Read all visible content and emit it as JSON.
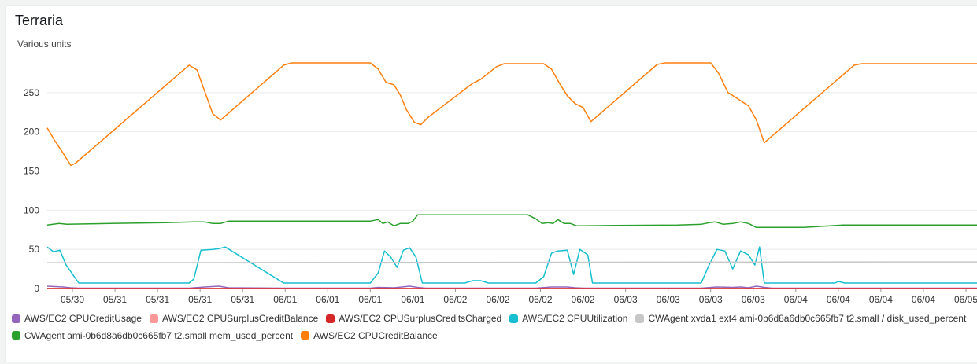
{
  "panel": {
    "title": "Terraria"
  },
  "chart_data": {
    "type": "line",
    "ylabel": "Various units",
    "ylim": [
      0,
      300
    ],
    "yticks": [
      0,
      50,
      100,
      150,
      200,
      250
    ],
    "xlim": [
      0,
      1180
    ],
    "x_tick_labels": [
      {
        "x": 32,
        "label": "05/30"
      },
      {
        "x": 86,
        "label": "05/31"
      },
      {
        "x": 140,
        "label": "05/31"
      },
      {
        "x": 194,
        "label": "05/31"
      },
      {
        "x": 248,
        "label": "05/31"
      },
      {
        "x": 302,
        "label": "06/01"
      },
      {
        "x": 356,
        "label": "06/01"
      },
      {
        "x": 410,
        "label": "06/01"
      },
      {
        "x": 464,
        "label": "06/01"
      },
      {
        "x": 518,
        "label": "06/02"
      },
      {
        "x": 572,
        "label": "06/02"
      },
      {
        "x": 626,
        "label": "06/02"
      },
      {
        "x": 680,
        "label": "06/02"
      },
      {
        "x": 734,
        "label": "06/03"
      },
      {
        "x": 788,
        "label": "06/03"
      },
      {
        "x": 842,
        "label": "06/03"
      },
      {
        "x": 896,
        "label": "06/03"
      },
      {
        "x": 950,
        "label": "06/04"
      },
      {
        "x": 1004,
        "label": "06/04"
      },
      {
        "x": 1058,
        "label": "06/04"
      },
      {
        "x": 1112,
        "label": "06/04"
      },
      {
        "x": 1166,
        "label": "06/05"
      }
    ],
    "grid": "horizontal",
    "legend_position": "bottom",
    "series": [
      {
        "name": "AWS/EC2 CPUCreditUsage",
        "color": "#9467bd",
        "x": [
          0,
          20,
          30,
          40,
          180,
          200,
          218,
          230,
          300,
          410,
          420,
          440,
          460,
          470,
          480,
          620,
          640,
          660,
          670,
          680,
          830,
          850,
          870,
          880,
          890,
          900,
          910,
          920,
          1180
        ],
        "y": [
          3,
          2,
          1,
          0.5,
          0.5,
          2,
          3,
          1,
          0.5,
          0.5,
          1.5,
          1,
          3,
          1.5,
          0.5,
          0.5,
          2,
          2,
          1,
          0.5,
          0.5,
          2,
          1.5,
          2,
          1,
          3,
          1.5,
          0.5,
          0.5
        ]
      },
      {
        "name": "AWS/EC2 CPUSurplusCreditBalance",
        "color": "#ff9896",
        "x": [
          0,
          1180
        ],
        "y": [
          0,
          0
        ]
      },
      {
        "name": "AWS/EC2 CPUSurplusCreditsCharged",
        "color": "#d62728",
        "x": [
          0,
          1180
        ],
        "y": [
          0,
          0
        ]
      },
      {
        "name": "AWS/EC2 CPUUtilization",
        "color": "#17becf",
        "x": [
          0,
          8,
          16,
          24,
          40,
          60,
          120,
          180,
          186,
          195,
          210,
          218,
          226,
          300,
          400,
          410,
          420,
          428,
          436,
          444,
          452,
          460,
          468,
          476,
          490,
          530,
          540,
          550,
          560,
          600,
          620,
          630,
          640,
          648,
          660,
          668,
          676,
          686,
          692,
          700,
          720,
          800,
          830,
          840,
          850,
          860,
          870,
          880,
          890,
          898,
          904,
          910,
          1000,
          1004,
          1012,
          1060,
          1180
        ],
        "y": [
          53,
          47,
          49,
          30,
          7,
          7,
          7,
          7,
          12,
          49,
          50,
          51,
          53,
          7,
          7,
          7,
          20,
          48,
          40,
          27,
          49,
          52,
          40,
          7,
          7,
          7,
          10,
          10,
          7,
          7,
          7,
          15,
          45,
          48,
          49,
          18,
          50,
          43,
          7,
          7,
          7,
          7,
          7,
          30,
          50,
          48,
          25,
          48,
          43,
          30,
          53,
          7,
          7,
          9,
          7,
          7,
          7
        ]
      },
      {
        "name": "CWAgent xvda1 ext4 ami-0b6d8a6db0c665fb7 t2.small / disk_used_percent",
        "color": "#c7c7c7",
        "x": [
          0,
          600,
          1180
        ],
        "y": [
          33,
          33.5,
          34
        ]
      },
      {
        "name": "CWAgent ami-0b6d8a6db0c665fb7 t2.small mem_used_percent",
        "color": "#2ca02c",
        "x": [
          0,
          15,
          25,
          80,
          150,
          185,
          200,
          210,
          220,
          230,
          300,
          400,
          410,
          420,
          426,
          432,
          440,
          448,
          458,
          464,
          470,
          480,
          560,
          610,
          620,
          628,
          636,
          642,
          648,
          656,
          664,
          672,
          680,
          720,
          800,
          816,
          830,
          840,
          848,
          858,
          870,
          880,
          890,
          900,
          960,
          1010,
          1180
        ],
        "y": [
          81,
          83,
          82,
          83,
          84,
          85,
          85,
          83,
          83,
          86,
          86,
          86,
          86,
          88,
          83,
          85,
          80,
          83,
          83,
          86,
          94,
          94,
          94,
          94,
          89,
          83,
          84,
          83,
          88,
          83,
          83,
          80,
          80,
          80.5,
          81,
          81.5,
          82,
          84,
          85,
          82,
          83,
          85,
          83,
          78,
          78,
          81,
          81
        ]
      },
      {
        "name": "AWS/EC2 CPUCreditBalance",
        "color": "#ff7f0e",
        "x": [
          0,
          10,
          20,
          30,
          36,
          180,
          190,
          210,
          220,
          300,
          310,
          320,
          410,
          420,
          430,
          440,
          448,
          456,
          466,
          474,
          484,
          540,
          550,
          560,
          570,
          580,
          630,
          640,
          650,
          660,
          670,
          680,
          690,
          774,
          784,
          794,
          832,
          842,
          852,
          864,
          872,
          890,
          900,
          910,
          1024,
          1034,
          1180
        ],
        "y": [
          205,
          188,
          173,
          157,
          160,
          285,
          279,
          223,
          215,
          285,
          288,
          288,
          288,
          280,
          263,
          260,
          247,
          228,
          212,
          209,
          219,
          262,
          267,
          275,
          283,
          287,
          287,
          280,
          262,
          246,
          236,
          231,
          213,
          286,
          288,
          288,
          288,
          288,
          275,
          250,
          245,
          233,
          215,
          186,
          285,
          287,
          287
        ]
      }
    ]
  }
}
